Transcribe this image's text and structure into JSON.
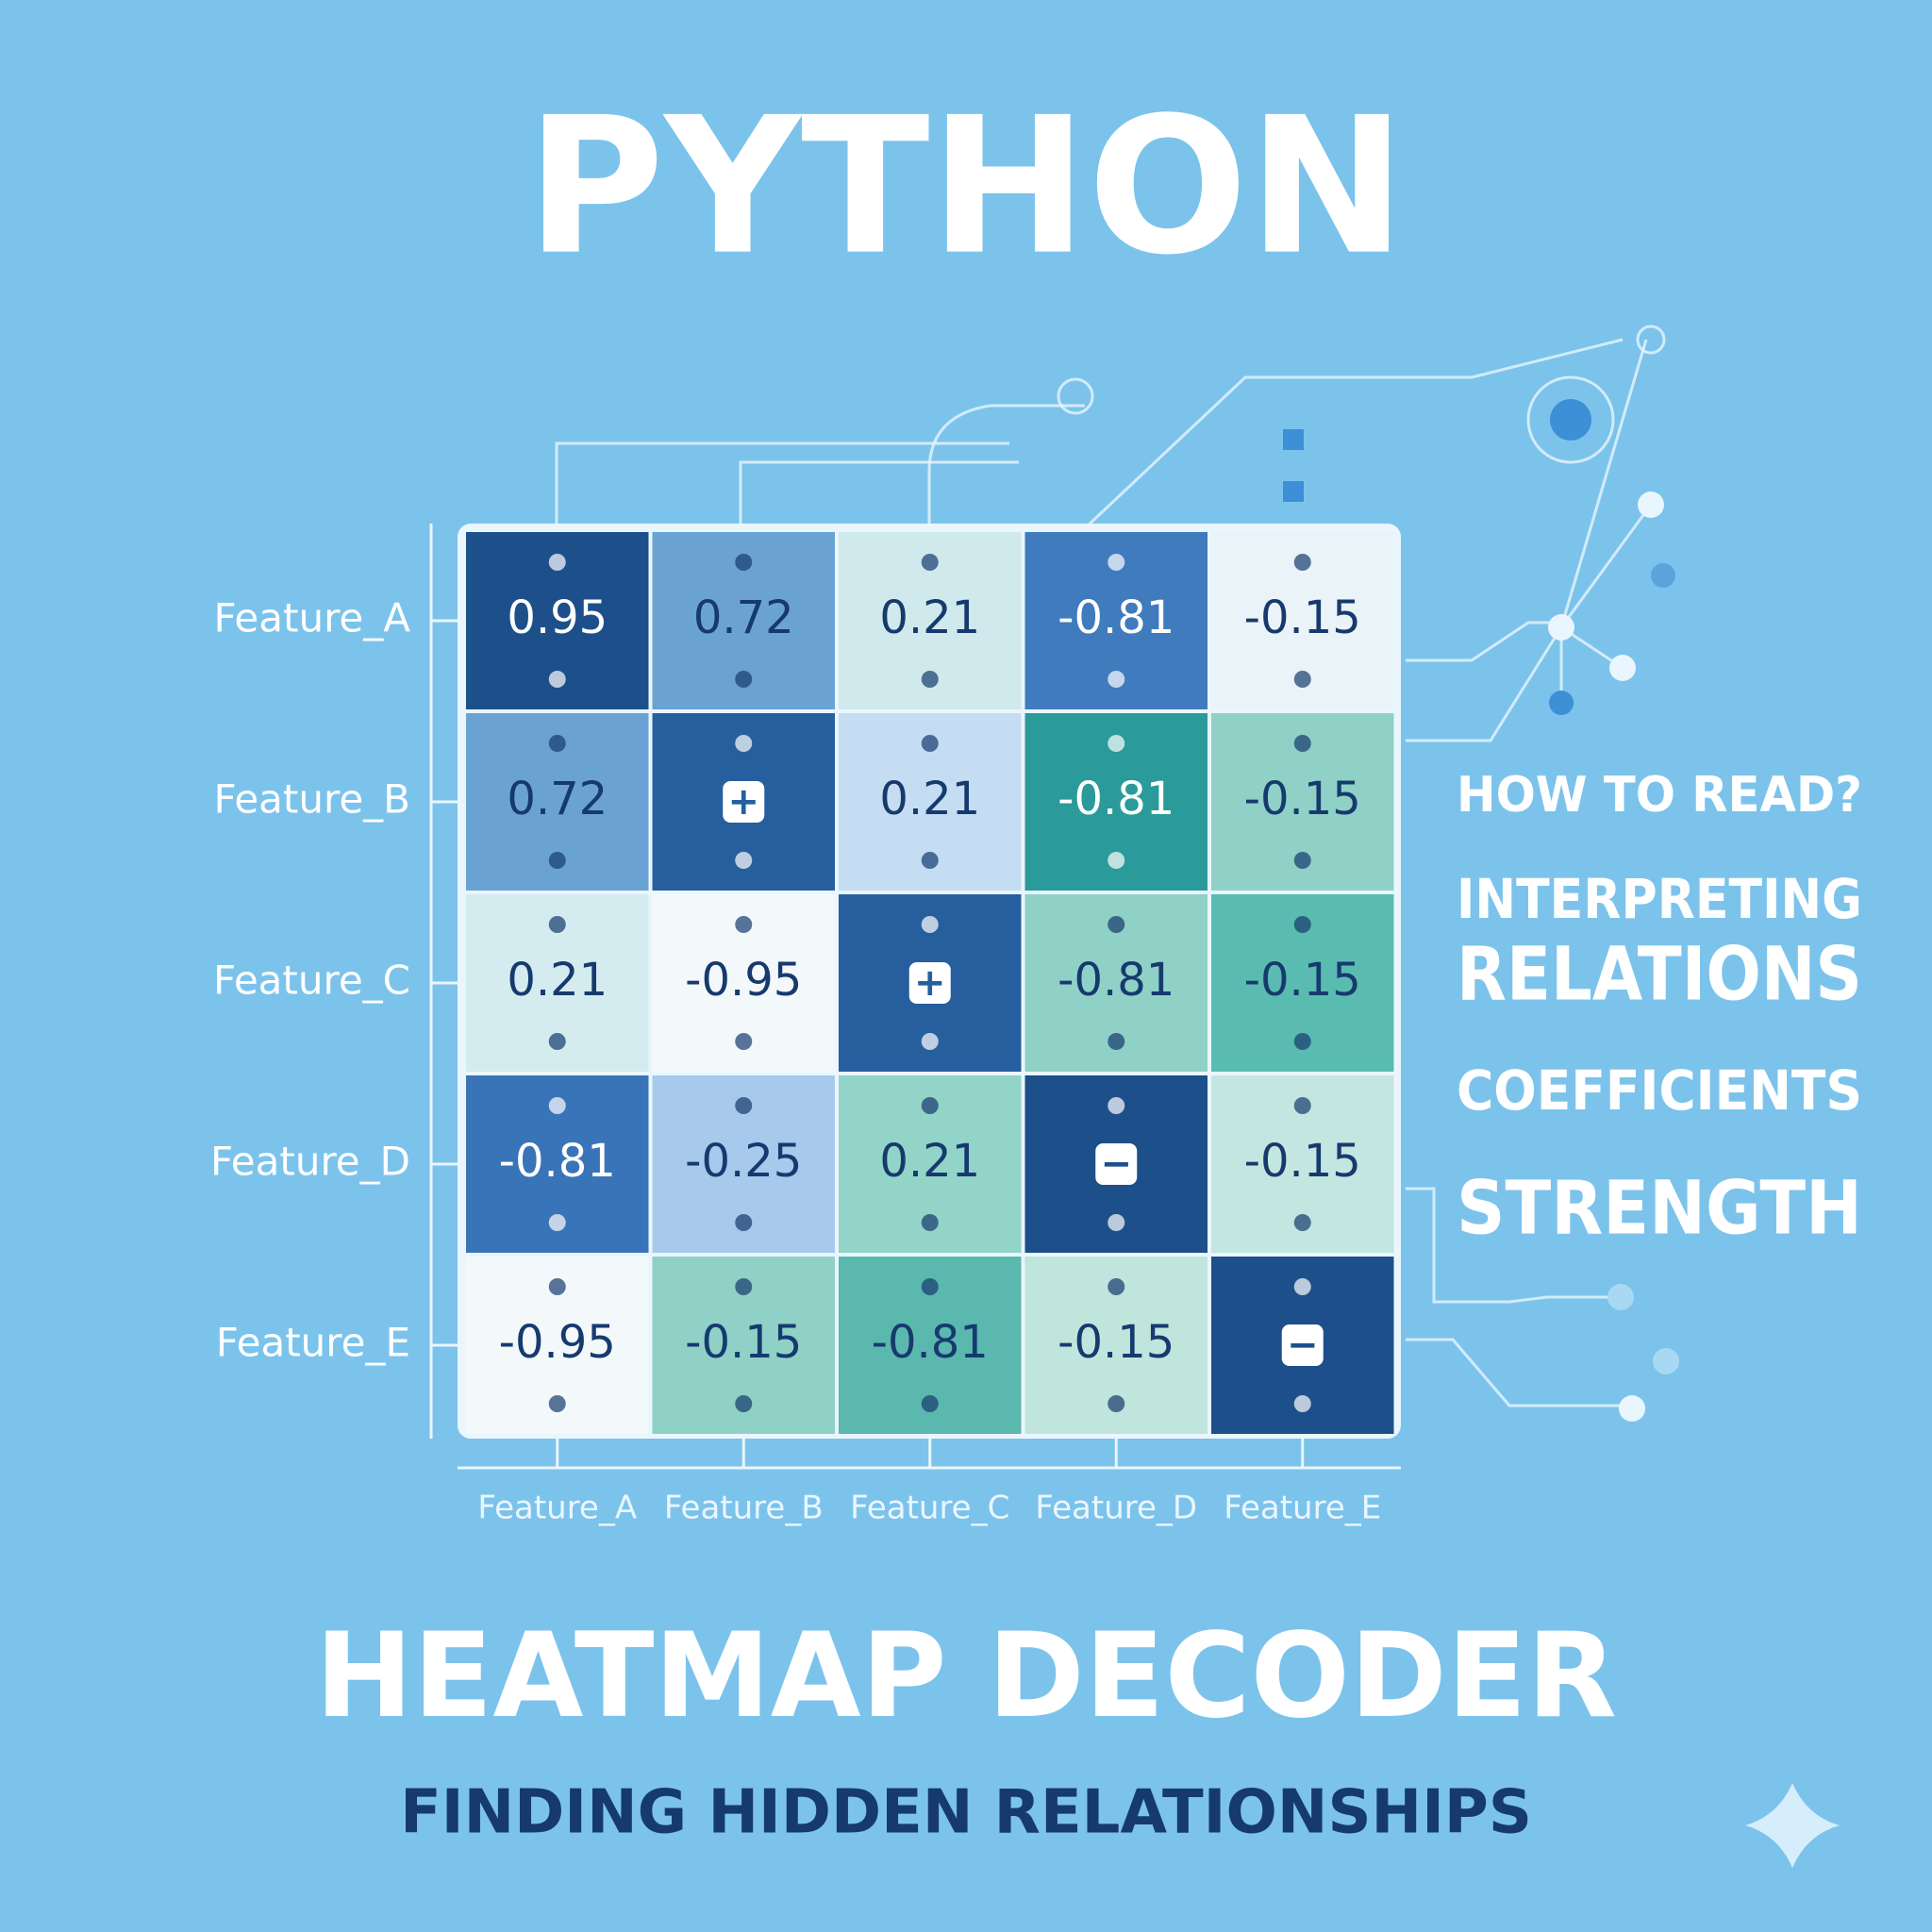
{
  "header": {
    "title": "PYTHON"
  },
  "chart_data": {
    "type": "heatmap",
    "x": [
      "Feature_A",
      "Feature_B",
      "Feature_C",
      "Feature_D",
      "Feature_E"
    ],
    "y": [
      "Feature_A",
      "Feature_B",
      "Feature_C",
      "Feature_D",
      "Feature_E"
    ],
    "values": [
      [
        0.95,
        0.72,
        0.21,
        -0.81,
        -0.15
      ],
      [
        0.72,
        null,
        0.21,
        -0.81,
        -0.15
      ],
      [
        0.21,
        -0.95,
        null,
        -0.81,
        -0.15
      ],
      [
        -0.81,
        -0.25,
        0.21,
        null,
        -0.15
      ],
      [
        -0.95,
        -0.15,
        -0.81,
        -0.15,
        null
      ]
    ],
    "value_labels": [
      [
        null,
        null,
        null,
        null,
        null
      ],
      [
        null,
        "+",
        null,
        null,
        null
      ],
      [
        null,
        null,
        "+",
        null,
        null
      ],
      [
        null,
        null,
        null,
        "−",
        null
      ],
      [
        null,
        null,
        null,
        null,
        "−"
      ]
    ],
    "colors": [
      [
        "#1d4f8a",
        "#6aa3d3",
        "#cfe9ec",
        "#3f7bbd",
        "#eaf3f8"
      ],
      [
        "#6aa3d3",
        "#275f9e",
        "#c4ddf2",
        "#2a9a9a",
        "#8fd1c6"
      ],
      [
        "#d4ecef",
        "#f3f8fb",
        "#275f9e",
        "#8fd1c6",
        "#5abcb0"
      ],
      [
        "#3a74b8",
        "#a6c9ec",
        "#93d4c8",
        "#1d4f8a",
        "#c3e6e0"
      ],
      [
        "#f3f8fb",
        "#8fd1c6",
        "#5ab8ae",
        "#bfe5dd",
        "#1d4f8a"
      ]
    ]
  },
  "side_notes": [
    "HOW TO READ?",
    "INTERPRETING",
    "RELATIONS",
    "COEFFICIENTS",
    "STRENGTH"
  ],
  "footer": {
    "title": "HEATMAP DECODER",
    "subtitle": "FINDING HIDDEN RELATIONSHIPS"
  }
}
